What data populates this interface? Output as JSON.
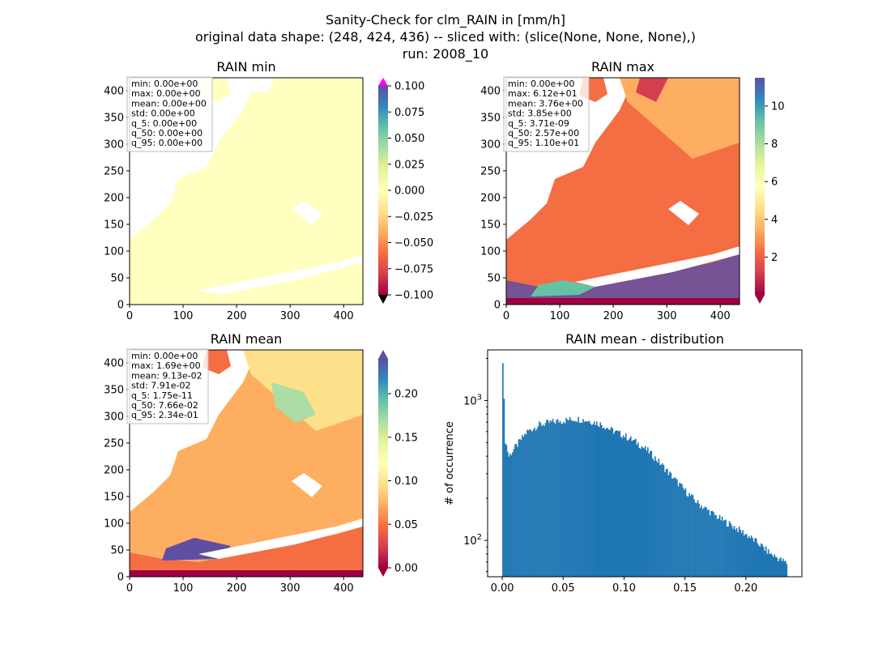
{
  "figure": {
    "title_line1": "Sanity-Check for clm_RAIN in [mm/h]",
    "title_line2": "original data shape: (248, 424, 436) -- sliced with: (slice(None, None, None),)",
    "title_line3": "run: 2008_10"
  },
  "colors": {
    "land_min": "#ffffbf",
    "hist_bar": "#1f77b4",
    "over_min": "#ff00ff",
    "under_min": "#000000",
    "spectral_low": "#9e0142",
    "spectral_high": "#5e4fa2"
  },
  "chart_data": [
    {
      "type": "heatmap",
      "title": "RAIN min",
      "x_ticks": [
        0,
        100,
        200,
        300,
        400
      ],
      "y_ticks": [
        0,
        50,
        100,
        150,
        200,
        250,
        300,
        350,
        400
      ],
      "xlim": [
        0,
        436
      ],
      "ylim": [
        0,
        424
      ],
      "colorbar": {
        "cmap": "Spectral",
        "range": [
          -0.1,
          0.1
        ],
        "extend": "both",
        "ticks": [
          "0.100",
          "0.075",
          "0.050",
          "0.025",
          "0.000",
          "−0.025",
          "−0.050",
          "−0.075",
          "−0.100"
        ],
        "tick_values": [
          0.1,
          0.075,
          0.05,
          0.025,
          0.0,
          -0.025,
          -0.05,
          -0.075,
          -0.1
        ]
      },
      "stats": [
        "min: 0.00e+00",
        "max: 0.00e+00",
        "mean: 0.00e+00",
        "std: 0.00e+00",
        "q_5: 0.00e+00",
        "q_50: 0.00e+00",
        "q_95: 0.00e+00"
      ]
    },
    {
      "type": "heatmap",
      "title": "RAIN max",
      "x_ticks": [
        0,
        100,
        200,
        300,
        400
      ],
      "y_ticks": [
        0,
        50,
        100,
        150,
        200,
        250,
        300,
        350,
        400
      ],
      "xlim": [
        0,
        436
      ],
      "ylim": [
        0,
        424
      ],
      "colorbar": {
        "cmap": "Spectral",
        "range": [
          0,
          11.5
        ],
        "extend": "min",
        "ticks": [
          "10",
          "8",
          "6",
          "4",
          "2"
        ],
        "tick_values": [
          10,
          8,
          6,
          4,
          2
        ]
      },
      "stats": [
        "min: 0.00e+00",
        "max: 6.12e+01",
        "mean: 3.76e+00",
        "std: 3.85e+00",
        "q_5: 3.71e-09",
        "q_50: 2.57e+00",
        "q_95: 1.10e+01"
      ]
    },
    {
      "type": "heatmap",
      "title": "RAIN mean",
      "x_ticks": [
        0,
        100,
        200,
        300,
        400
      ],
      "y_ticks": [
        0,
        50,
        100,
        150,
        200,
        250,
        300,
        350,
        400
      ],
      "xlim": [
        0,
        436
      ],
      "ylim": [
        0,
        424
      ],
      "colorbar": {
        "cmap": "Spectral",
        "range": [
          0,
          0.24
        ],
        "extend": "both",
        "ticks": [
          "0.20",
          "0.15",
          "0.10",
          "0.05",
          "0.00"
        ],
        "tick_values": [
          0.2,
          0.15,
          0.1,
          0.05,
          0.0
        ]
      },
      "stats": [
        "min: 0.00e+00",
        "max: 1.69e+00",
        "mean: 9.13e-02",
        "std: 7.91e-02",
        "q_5: 1.75e-11",
        "q_50: 7.66e-02",
        "q_95: 2.34e-01"
      ]
    },
    {
      "type": "bar",
      "title": "RAIN mean - distribution",
      "ylabel": "# of occurrence",
      "yscale": "log",
      "xlim": [
        -0.012,
        0.246
      ],
      "ylim": [
        55,
        2300
      ],
      "x_ticks": [
        "0.00",
        "0.05",
        "0.10",
        "0.15",
        "0.20"
      ],
      "x_tick_values": [
        0.0,
        0.05,
        0.1,
        0.15,
        0.2
      ],
      "y_major_ticks": [
        100,
        1000
      ],
      "y_major_labels": [
        "10",
        "10"
      ],
      "y_major_exponents": [
        "2",
        "3"
      ],
      "bins": {
        "start": 0.0,
        "end": 0.234,
        "width": 0.001
      },
      "key_counts": [
        {
          "x": 0.0,
          "y": 1850
        },
        {
          "x": 0.002,
          "y": 520
        },
        {
          "x": 0.005,
          "y": 400
        },
        {
          "x": 0.01,
          "y": 460
        },
        {
          "x": 0.02,
          "y": 600
        },
        {
          "x": 0.03,
          "y": 670
        },
        {
          "x": 0.04,
          "y": 700
        },
        {
          "x": 0.05,
          "y": 720
        },
        {
          "x": 0.06,
          "y": 740
        },
        {
          "x": 0.07,
          "y": 720
        },
        {
          "x": 0.08,
          "y": 680
        },
        {
          "x": 0.09,
          "y": 610
        },
        {
          "x": 0.1,
          "y": 560
        },
        {
          "x": 0.11,
          "y": 500
        },
        {
          "x": 0.12,
          "y": 430
        },
        {
          "x": 0.13,
          "y": 350
        },
        {
          "x": 0.14,
          "y": 280
        },
        {
          "x": 0.15,
          "y": 225
        },
        {
          "x": 0.16,
          "y": 185
        },
        {
          "x": 0.17,
          "y": 160
        },
        {
          "x": 0.18,
          "y": 140
        },
        {
          "x": 0.19,
          "y": 125
        },
        {
          "x": 0.2,
          "y": 110
        },
        {
          "x": 0.21,
          "y": 95
        },
        {
          "x": 0.22,
          "y": 80
        },
        {
          "x": 0.234,
          "y": 68
        }
      ]
    }
  ]
}
